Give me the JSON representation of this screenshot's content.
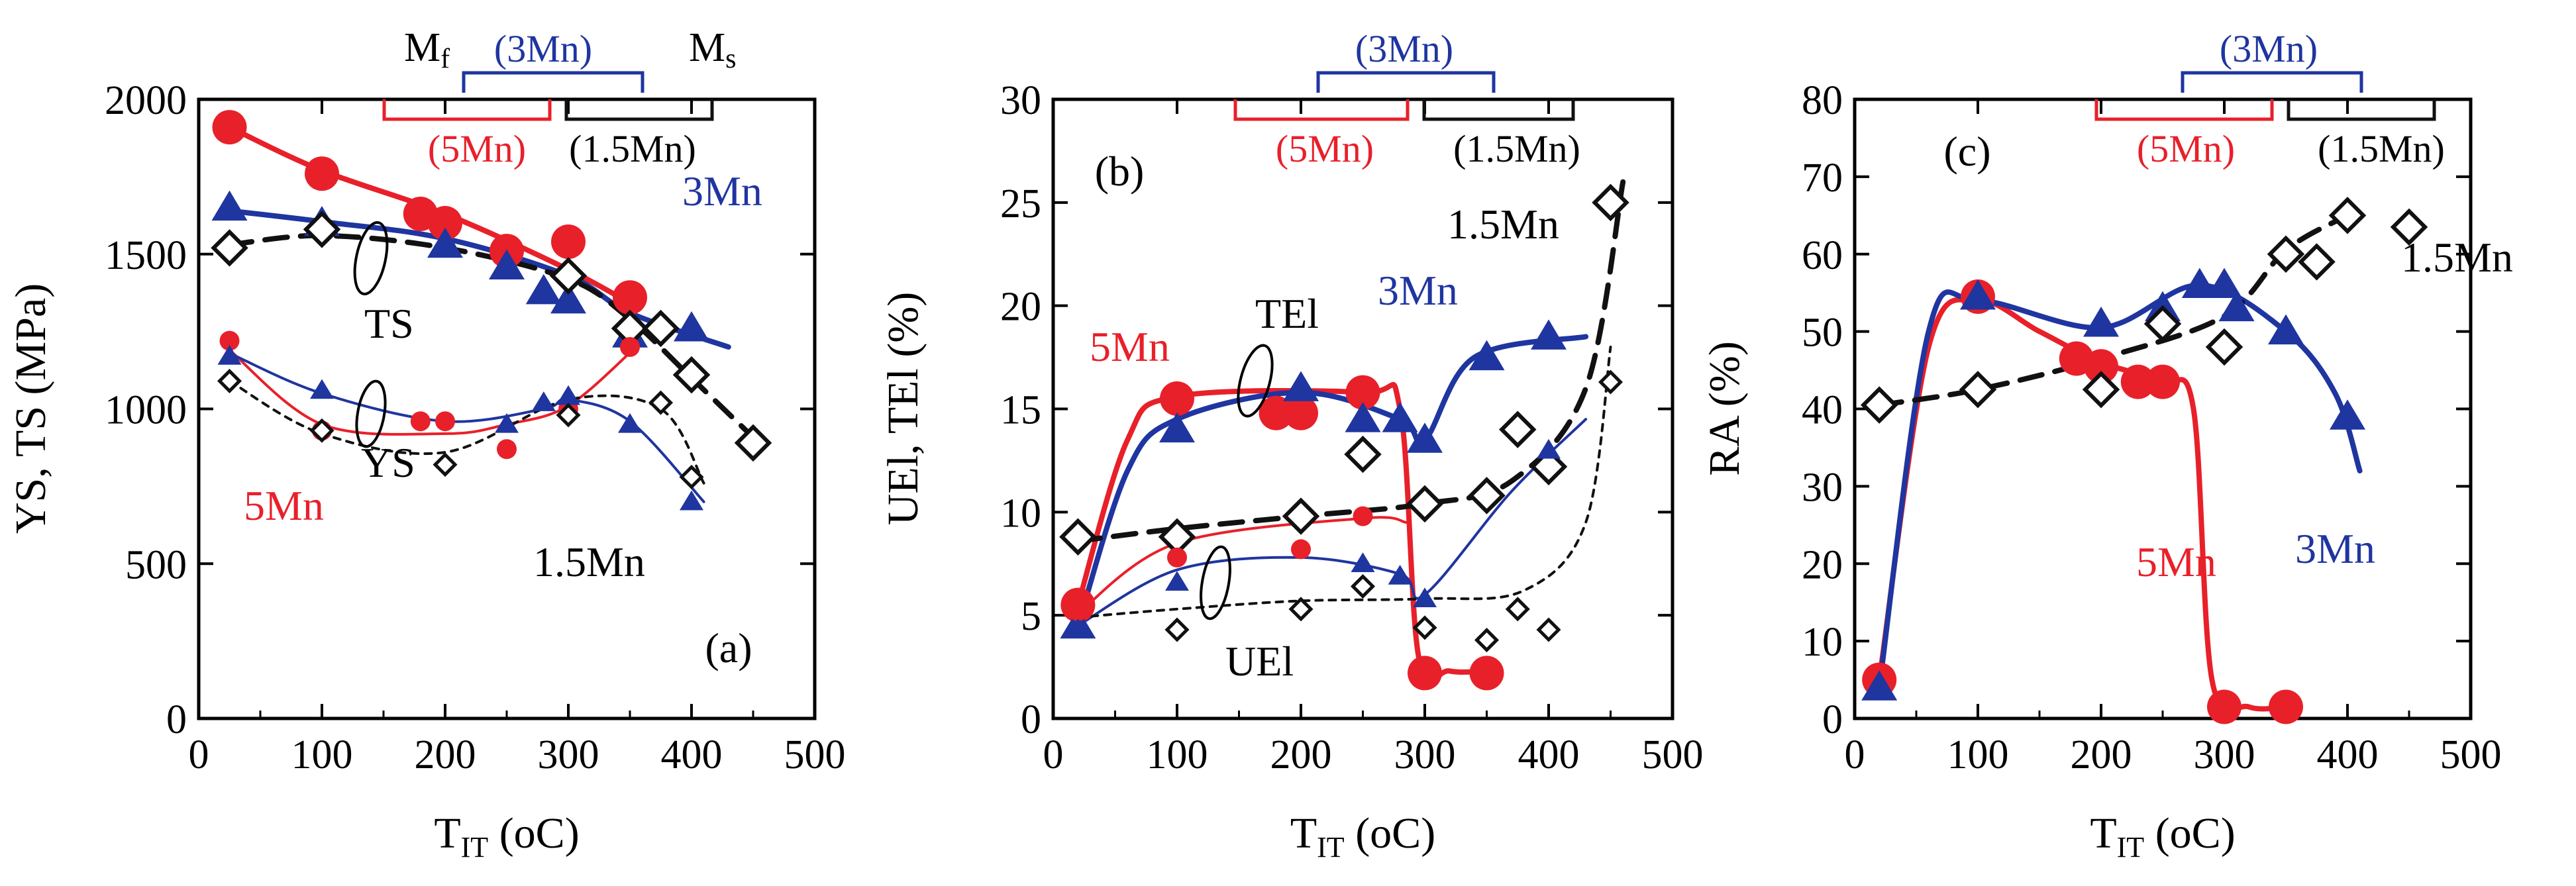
{
  "colors": {
    "5Mn": "#e8202a",
    "3Mn": "#1f35a0",
    "1.5Mn": "#111111",
    "axis": "#000000"
  },
  "chart_data": [
    {
      "type": "scatter",
      "panel_label": "(a)",
      "ylabel": "YS, TS (MPa)",
      "xlabel_main": "T",
      "xlabel_sub": "IT",
      "xlabel_unit": " (oC)",
      "xlim": [
        0,
        500
      ],
      "ylim": [
        0,
        2000
      ],
      "xticks": [
        0,
        100,
        200,
        300,
        400,
        500
      ],
      "yticks": [
        0,
        500,
        1000,
        1500,
        2000
      ],
      "bracket_labels": {
        "mf_main": "M",
        "mf_sub": "f",
        "ms_main": "M",
        "ms_sub": "s",
        "3mn": "(3Mn)",
        "5mn": "(5Mn)",
        "15mn": "(1.5Mn)"
      },
      "annotations": {
        "ts": "TS",
        "ys": "YS",
        "5mn": "5Mn",
        "3mn": "3Mn",
        "15mn": "1.5Mn"
      },
      "series": [
        {
          "name": "5Mn TS",
          "steel": "5Mn",
          "marker": "circle-large",
          "x": [
            25,
            100,
            180,
            200,
            250,
            300,
            350
          ],
          "y": [
            1910,
            1760,
            1630,
            1600,
            1510,
            1540,
            1360
          ],
          "fit": [
            [
              25,
              1910
            ],
            [
              100,
              1770
            ],
            [
              200,
              1630
            ],
            [
              300,
              1450
            ],
            [
              355,
              1330
            ]
          ]
        },
        {
          "name": "3Mn TS",
          "steel": "3Mn",
          "marker": "triangle-large",
          "x": [
            25,
            100,
            200,
            250,
            280,
            300,
            350,
            400
          ],
          "y": [
            1650,
            1600,
            1530,
            1460,
            1380,
            1350,
            1240,
            1260
          ],
          "fit": [
            [
              25,
              1640
            ],
            [
              100,
              1605
            ],
            [
              200,
              1550
            ],
            [
              300,
              1430
            ],
            [
              350,
              1310
            ],
            [
              430,
              1200
            ]
          ]
        },
        {
          "name": "1.5Mn TS",
          "steel": "1.5Mn",
          "marker": "diamond",
          "x": [
            25,
            100,
            300,
            350,
            375,
            400,
            450
          ],
          "y": [
            1520,
            1580,
            1430,
            1260,
            1260,
            1110,
            890
          ],
          "fit": [
            [
              25,
              1530
            ],
            [
              100,
              1560
            ],
            [
              200,
              1520
            ],
            [
              300,
              1420
            ],
            [
              350,
              1290
            ],
            [
              400,
              1100
            ],
            [
              460,
              870
            ]
          ],
          "fit_style": "dashed"
        },
        {
          "name": "5Mn YS",
          "steel": "5Mn",
          "marker": "circle-small",
          "x": [
            25,
            100,
            180,
            200,
            250,
            300,
            350
          ],
          "y": [
            1220,
            930,
            960,
            960,
            870,
            1000,
            1200
          ],
          "fit": [
            [
              25,
              1190
            ],
            [
              100,
              950
            ],
            [
              200,
              920
            ],
            [
              250,
              950
            ],
            [
              300,
              1010
            ],
            [
              355,
              1200
            ]
          ]
        },
        {
          "name": "3Mn YS",
          "steel": "3Mn",
          "marker": "triangle-small",
          "x": [
            25,
            100,
            250,
            280,
            300,
            350,
            400
          ],
          "y": [
            1170,
            1060,
            950,
            1020,
            1040,
            950,
            700
          ],
          "fit": [
            [
              25,
              1180
            ],
            [
              100,
              1050
            ],
            [
              200,
              960
            ],
            [
              280,
              1000
            ],
            [
              300,
              1030
            ],
            [
              350,
              960
            ],
            [
              410,
              700
            ]
          ]
        },
        {
          "name": "1.5Mn YS",
          "steel": "1.5Mn",
          "marker": "diamond-small",
          "x": [
            25,
            100,
            200,
            300,
            375,
            400
          ],
          "y": [
            1090,
            930,
            820,
            980,
            1020,
            780
          ],
          "fit": [
            [
              25,
              1090
            ],
            [
              100,
              920
            ],
            [
              200,
              860
            ],
            [
              300,
              1030
            ],
            [
              375,
              1000
            ],
            [
              410,
              760
            ]
          ],
          "fit_style": "dotted"
        }
      ]
    },
    {
      "type": "scatter",
      "panel_label": "(b)",
      "ylabel": "UEl, TEl (%)",
      "xlabel_main": "T",
      "xlabel_sub": "IT",
      "xlabel_unit": " (oC)",
      "xlim": [
        0,
        500
      ],
      "ylim": [
        0,
        30
      ],
      "xticks": [
        0,
        100,
        200,
        300,
        400,
        500
      ],
      "yticks": [
        0,
        5,
        10,
        15,
        20,
        25,
        30
      ],
      "bracket_labels": {
        "3mn": "(3Mn)",
        "5mn": "(5Mn)",
        "15mn": "(1.5Mn)"
      },
      "annotations": {
        "tel": "TEl",
        "uel": "UEl",
        "5mn": "5Mn",
        "3mn": "3Mn",
        "15mn": "1.5Mn"
      },
      "series": [
        {
          "name": "5Mn TEl",
          "steel": "5Mn",
          "marker": "circle-large",
          "x": [
            20,
            100,
            180,
            200,
            250,
            300,
            350
          ],
          "y": [
            5.5,
            15.5,
            14.8,
            14.8,
            15.8,
            2.2,
            2.2
          ],
          "fit": [
            [
              20,
              5.5
            ],
            [
              60,
              13.5
            ],
            [
              100,
              15.6
            ],
            [
              250,
              15.8
            ],
            [
              280,
              15
            ],
            [
              295,
              3
            ],
            [
              320,
              2.3
            ],
            [
              350,
              2.3
            ]
          ]
        },
        {
          "name": "3Mn TEl",
          "steel": "3Mn",
          "marker": "triangle-large",
          "x": [
            20,
            100,
            200,
            250,
            280,
            300,
            350,
            400
          ],
          "y": [
            4.5,
            14.0,
            16.0,
            14.5,
            14.5,
            13.5,
            17.5,
            18.5
          ],
          "fit": [
            [
              20,
              4.5
            ],
            [
              60,
              12
            ],
            [
              100,
              14.5
            ],
            [
              200,
              15.8
            ],
            [
              280,
              14.5
            ],
            [
              300,
              13.5
            ],
            [
              340,
              17.5
            ],
            [
              430,
              18.5
            ]
          ]
        },
        {
          "name": "1.5Mn TEl",
          "steel": "1.5Mn",
          "marker": "diamond",
          "x": [
            20,
            100,
            200,
            250,
            300,
            350,
            375,
            400,
            450
          ],
          "y": [
            8.8,
            8.8,
            9.8,
            12.8,
            10.4,
            10.8,
            14.0,
            12.2,
            25.0
          ],
          "fit": [
            [
              20,
              8.6
            ],
            [
              100,
              9.2
            ],
            [
              200,
              9.8
            ],
            [
              300,
              10.4
            ],
            [
              370,
              11.5
            ],
            [
              430,
              16
            ],
            [
              460,
              26
            ]
          ],
          "fit_style": "dashed"
        },
        {
          "name": "5Mn UEl",
          "steel": "5Mn",
          "marker": "circle-small",
          "x": [
            20,
            100,
            200,
            250
          ],
          "y": [
            5.2,
            7.8,
            8.2,
            9.8
          ],
          "fit": [
            [
              20,
              5.1
            ],
            [
              100,
              8.5
            ],
            [
              250,
              9.7
            ],
            [
              285,
              9.5
            ]
          ]
        },
        {
          "name": "3Mn UEl",
          "steel": "3Mn",
          "marker": "triangle-small",
          "x": [
            20,
            100,
            250,
            280,
            300,
            400
          ],
          "y": [
            4.3,
            6.6,
            7.5,
            6.9,
            5.8,
            13.0
          ],
          "fit": [
            [
              20,
              4.5
            ],
            [
              100,
              7.2
            ],
            [
              200,
              7.8
            ],
            [
              280,
              7
            ],
            [
              300,
              6
            ],
            [
              370,
              11
            ],
            [
              430,
              14.5
            ]
          ]
        },
        {
          "name": "1.5Mn UEl",
          "steel": "1.5Mn",
          "marker": "diamond-small",
          "x": [
            100,
            200,
            250,
            300,
            350,
            375,
            400,
            450
          ],
          "y": [
            4.3,
            5.3,
            6.4,
            4.4,
            3.8,
            5.3,
            4.3,
            16.3
          ],
          "fit": [
            [
              20,
              4.9
            ],
            [
              100,
              5.3
            ],
            [
              200,
              5.7
            ],
            [
              300,
              5.8
            ],
            [
              380,
              6.2
            ],
            [
              430,
              9.5
            ],
            [
              450,
              18
            ]
          ],
          "fit_style": "dotted"
        }
      ]
    },
    {
      "type": "scatter",
      "panel_label": "(c)",
      "ylabel": "RA (%)",
      "xlabel_main": "T",
      "xlabel_sub": "IT",
      "xlabel_unit": " (oC)",
      "xlim": [
        0,
        500
      ],
      "ylim": [
        0,
        80
      ],
      "xticks": [
        0,
        100,
        200,
        300,
        400,
        500
      ],
      "yticks": [
        0,
        10,
        20,
        30,
        40,
        50,
        60,
        70,
        80
      ],
      "bracket_labels": {
        "3mn": "(3Mn)",
        "5mn": "(5Mn)",
        "15mn": "(1.5Mn)"
      },
      "annotations": {
        "5mn": "5Mn",
        "3mn": "3Mn",
        "15mn": "1.5Mn"
      },
      "series": [
        {
          "name": "5Mn RA",
          "steel": "5Mn",
          "marker": "circle-large",
          "x": [
            20,
            100,
            180,
            200,
            230,
            250,
            300,
            350
          ],
          "y": [
            5,
            54.5,
            46.5,
            45.5,
            43.5,
            43.5,
            1.5,
            1.5
          ],
          "fit": [
            [
              20,
              5
            ],
            [
              60,
              48
            ],
            [
              100,
              54
            ],
            [
              150,
              50
            ],
            [
              200,
              46
            ],
            [
              250,
              43.5
            ],
            [
              275,
              40
            ],
            [
              290,
              5
            ],
            [
              320,
              1.5
            ],
            [
              350,
              1.5
            ]
          ]
        },
        {
          "name": "3Mn RA",
          "steel": "3Mn",
          "marker": "triangle-large",
          "x": [
            20,
            100,
            200,
            250,
            280,
            300,
            310,
            350,
            400
          ],
          "y": [
            4,
            54.5,
            51,
            53,
            56,
            56,
            53,
            50,
            39
          ],
          "fit": [
            [
              20,
              4
            ],
            [
              60,
              50
            ],
            [
              100,
              54
            ],
            [
              200,
              50.5
            ],
            [
              280,
              56
            ],
            [
              350,
              50
            ],
            [
              390,
              42
            ],
            [
              410,
              32
            ]
          ]
        },
        {
          "name": "1.5Mn RA",
          "steel": "1.5Mn",
          "marker": "diamond",
          "x": [
            20,
            100,
            200,
            250,
            300,
            350,
            375,
            400,
            450
          ],
          "y": [
            40.5,
            42.5,
            42.5,
            51,
            48,
            60,
            59,
            65,
            63.5
          ],
          "fit": [
            [
              20,
              40.5
            ],
            [
              100,
              42.5
            ],
            [
              200,
              46.5
            ],
            [
              300,
              52
            ],
            [
              350,
              60.5
            ],
            [
              400,
              65
            ]
          ],
          "fit_style": "dashed"
        }
      ]
    }
  ]
}
